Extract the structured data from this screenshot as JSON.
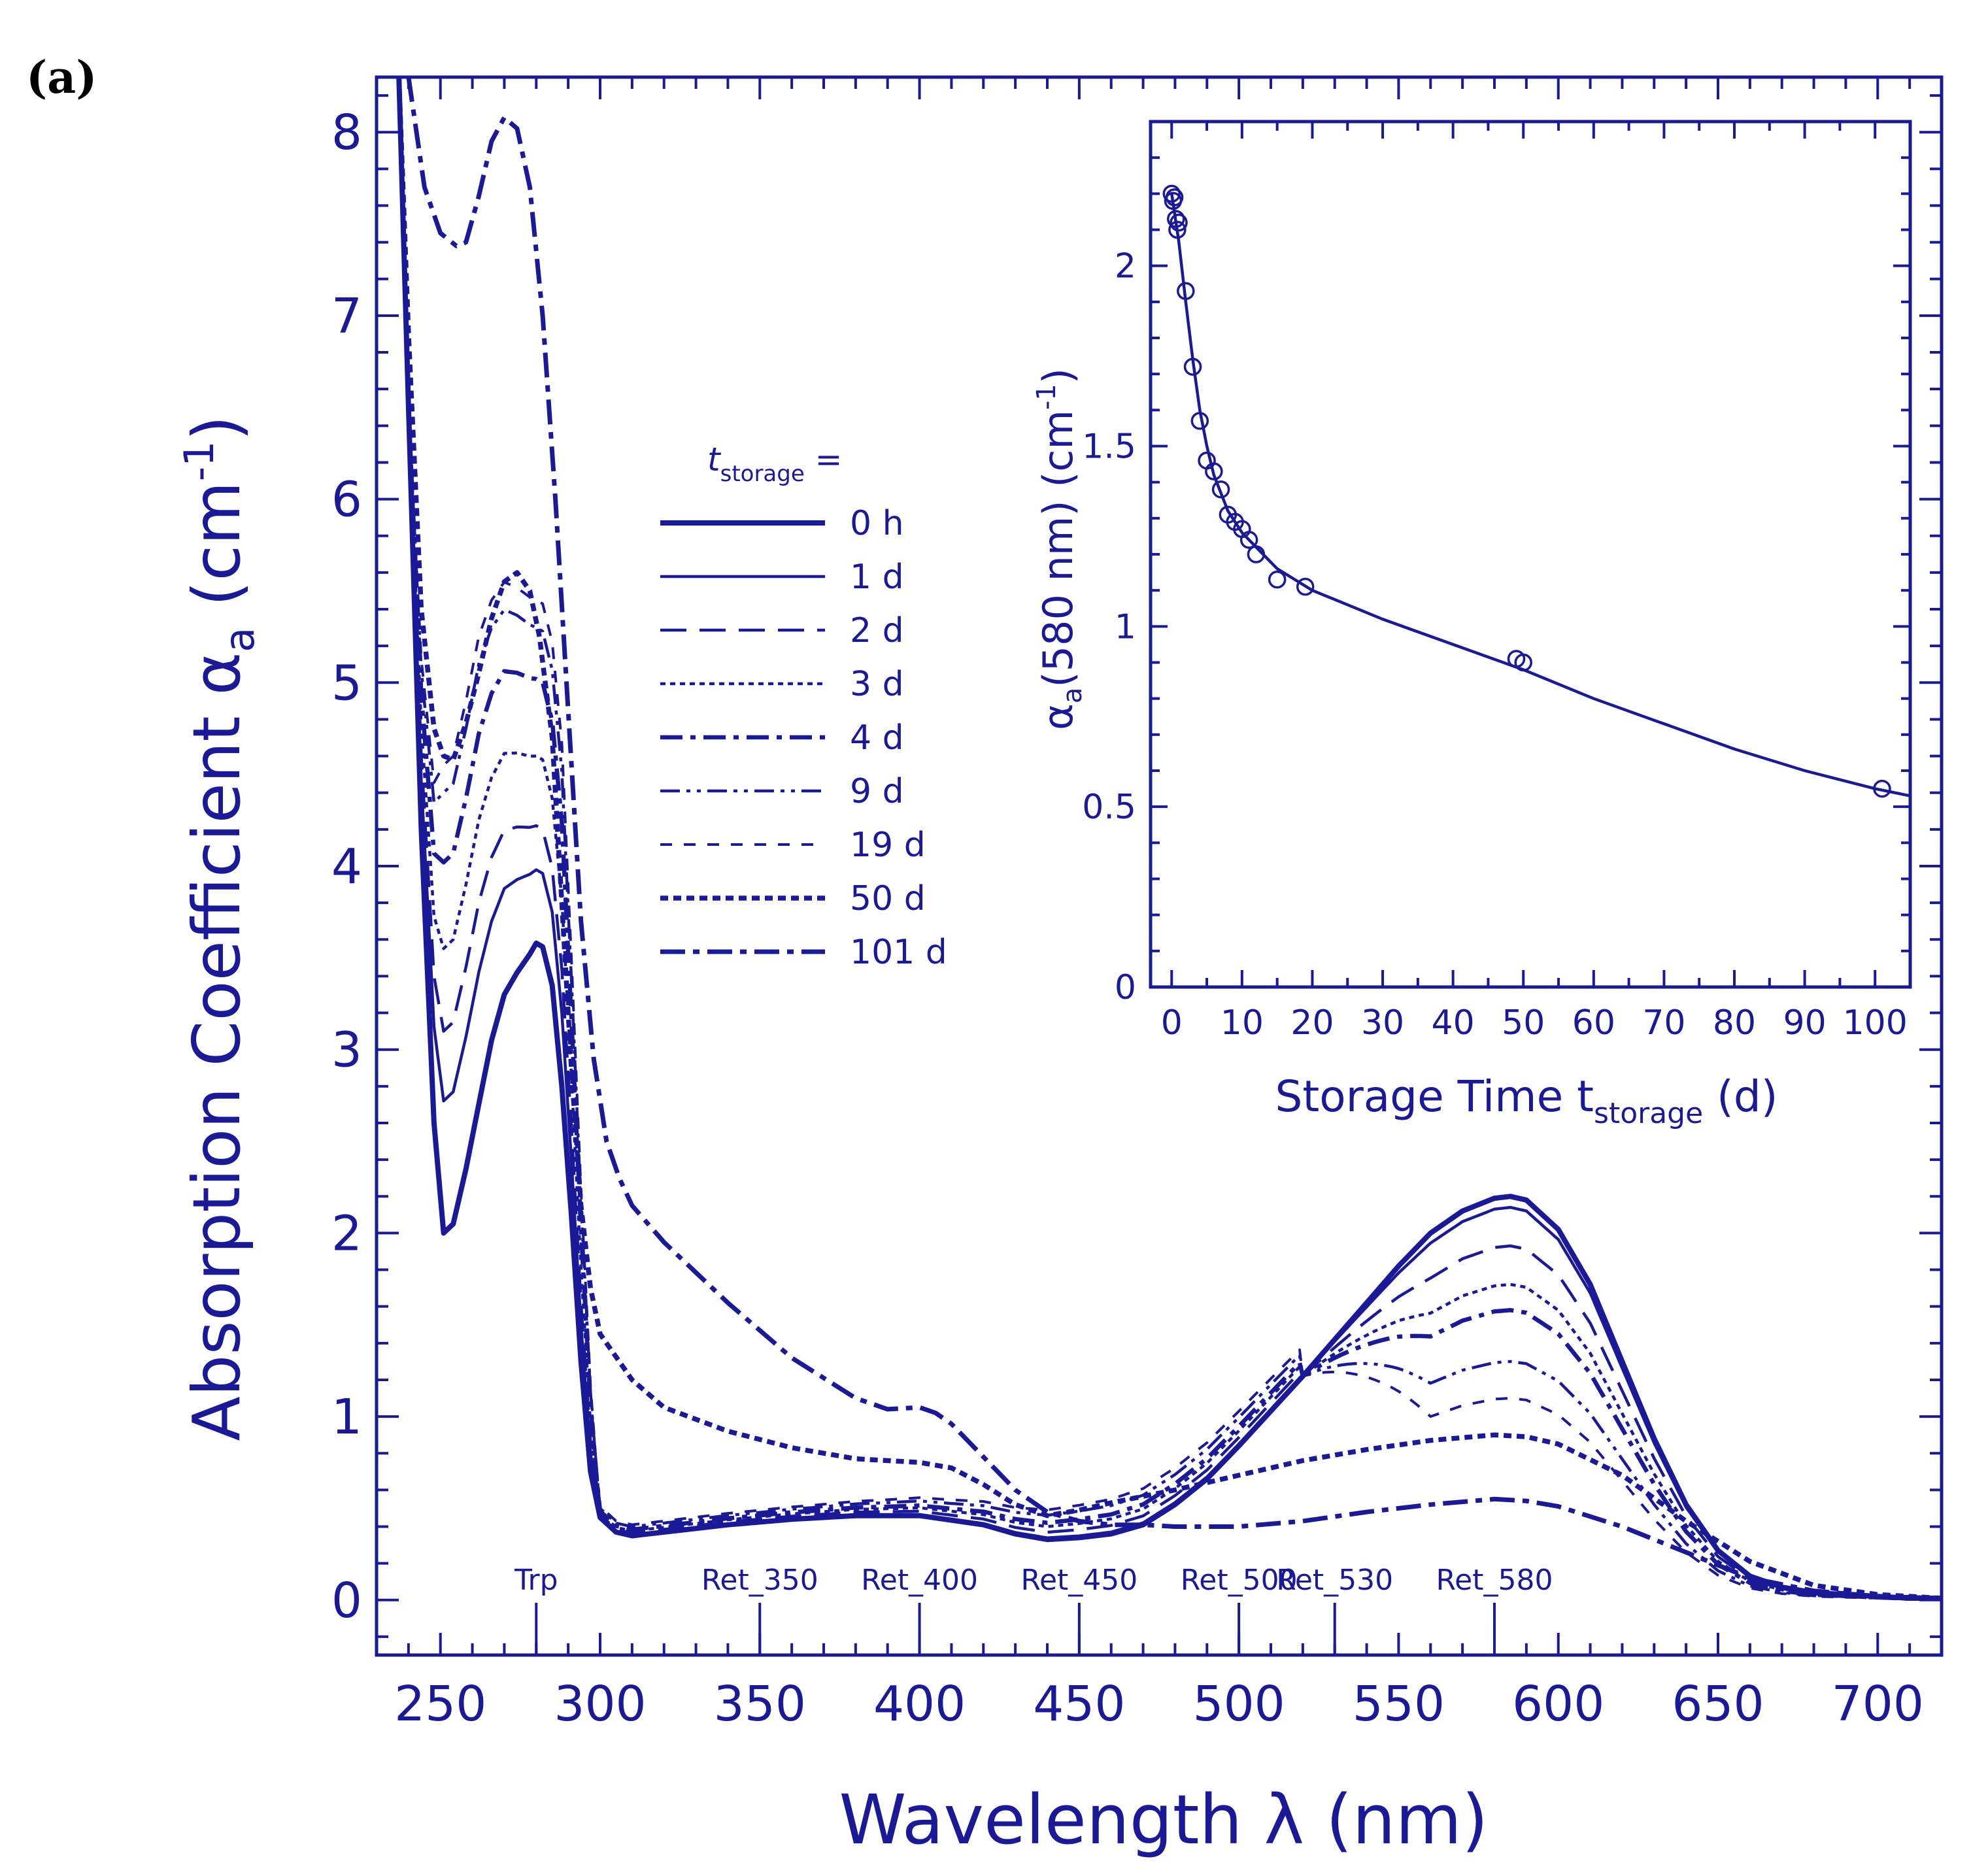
{
  "panel_label": "(a)",
  "colors": {
    "ink": "#1a1a99"
  },
  "chart_data": [
    {
      "type": "line",
      "title": "",
      "xlabel": "Wavelength  λ  (nm)",
      "ylabel_main": "Absorption Coefficient  α",
      "ylabel_sub": "a",
      "ylabel_unit_open": "(cm",
      "ylabel_unit_sup": "-1",
      "ylabel_unit_close": ")",
      "xlim": [
        230,
        720
      ],
      "ylim": [
        -0.3,
        8.3
      ],
      "xticks": [
        250,
        300,
        350,
        400,
        450,
        500,
        550,
        600,
        650,
        700
      ],
      "yticks": [
        0,
        1,
        2,
        3,
        4,
        5,
        6,
        7,
        8
      ],
      "legend_title_main": "t",
      "legend_title_sub": "storage",
      "legend_title_eq": " =",
      "legend_position": "center-left",
      "annotations": [
        {
          "label": "Trp",
          "x": 280
        },
        {
          "label": "Ret_350",
          "x": 350
        },
        {
          "label": "Ret_400",
          "x": 400
        },
        {
          "label": "Ret_450",
          "x": 450
        },
        {
          "label": "Ret_500",
          "x": 500
        },
        {
          "label": "Ret_530",
          "x": 530
        },
        {
          "label": "Ret_580",
          "x": 580
        }
      ],
      "series": [
        {
          "name": "0 h",
          "style": "solid-thick",
          "x": [
            237,
            240,
            244,
            248,
            251,
            254,
            258,
            262,
            266,
            270,
            274,
            278,
            280,
            282,
            285,
            288,
            291,
            294,
            297,
            300,
            305,
            310,
            315,
            320,
            330,
            340,
            360,
            380,
            400,
            420,
            430,
            440,
            450,
            460,
            470,
            480,
            490,
            500,
            510,
            520,
            530,
            540,
            550,
            560,
            570,
            580,
            585,
            590,
            600,
            610,
            620,
            630,
            640,
            650,
            660,
            670,
            680,
            690,
            700,
            710,
            720
          ],
          "y": [
            8.3,
            6.5,
            4.2,
            2.6,
            2.0,
            2.05,
            2.35,
            2.7,
            3.05,
            3.3,
            3.42,
            3.52,
            3.58,
            3.56,
            3.35,
            2.8,
            2.1,
            1.3,
            0.7,
            0.45,
            0.37,
            0.35,
            0.36,
            0.37,
            0.39,
            0.41,
            0.44,
            0.46,
            0.46,
            0.41,
            0.36,
            0.33,
            0.34,
            0.36,
            0.41,
            0.52,
            0.66,
            0.84,
            1.03,
            1.22,
            1.42,
            1.62,
            1.82,
            2.0,
            2.12,
            2.19,
            2.2,
            2.18,
            2.02,
            1.72,
            1.3,
            0.88,
            0.52,
            0.27,
            0.13,
            0.07,
            0.04,
            0.03,
            0.02,
            0.01,
            0.01
          ]
        },
        {
          "name": "1 d",
          "style": "solid",
          "base": "0h",
          "peak280": 3.98,
          "min250": 2.72,
          "peak580": 2.14
        },
        {
          "name": "2 d",
          "style": "dash-long",
          "base": "0h",
          "peak280": 4.22,
          "min250": 3.1,
          "peak580": 1.93
        },
        {
          "name": "3 d",
          "style": "dot-fine",
          "base": "0h",
          "peak280": 4.6,
          "min250": 3.55,
          "peak580": 1.72
        },
        {
          "name": "4 d",
          "style": "dash-dot",
          "base": "0h",
          "peak280": 5.02,
          "min250": 4.02,
          "peak580": 1.58
        },
        {
          "name": "9 d",
          "style": "dash-dot-dot",
          "base": "0h",
          "peak280": 5.3,
          "min250": 4.4,
          "peak580": 1.3
        },
        {
          "name": "19 d",
          "style": "dash-short",
          "base": "0h",
          "peak280": 5.45,
          "min250": 4.55,
          "peak580": 1.1
        },
        {
          "name": "50 d",
          "style": "dot-thick",
          "x": [
            237,
            240,
            244,
            248,
            251,
            254,
            258,
            262,
            266,
            270,
            274,
            278,
            281,
            285,
            288,
            291,
            294,
            297,
            300,
            310,
            320,
            340,
            360,
            380,
            400,
            410,
            420,
            430,
            440,
            450,
            460,
            480,
            500,
            520,
            540,
            560,
            580,
            590,
            600,
            620,
            640,
            660,
            680,
            700,
            720
          ],
          "y": [
            8.3,
            6.9,
            5.4,
            4.75,
            4.6,
            4.58,
            4.78,
            5.05,
            5.35,
            5.55,
            5.6,
            5.5,
            5.25,
            4.7,
            3.8,
            2.9,
            2.15,
            1.7,
            1.45,
            1.2,
            1.05,
            0.92,
            0.83,
            0.77,
            0.75,
            0.72,
            0.63,
            0.52,
            0.46,
            0.49,
            0.53,
            0.6,
            0.68,
            0.76,
            0.82,
            0.87,
            0.9,
            0.89,
            0.85,
            0.68,
            0.43,
            0.21,
            0.08,
            0.03,
            0.01
          ]
        },
        {
          "name": "101 d",
          "style": "dash-dot-thick",
          "x": [
            240,
            245,
            250,
            255,
            258,
            262,
            266,
            270,
            274,
            278,
            282,
            286,
            290,
            294,
            298,
            302,
            306,
            310,
            320,
            340,
            360,
            380,
            390,
            400,
            405,
            410,
            420,
            430,
            440,
            450,
            460,
            470,
            480,
            500,
            520,
            540,
            560,
            580,
            590,
            600,
            620,
            640,
            660,
            680,
            700,
            720
          ],
          "y": [
            8.3,
            7.7,
            7.45,
            7.38,
            7.4,
            7.65,
            7.95,
            8.08,
            8.02,
            7.7,
            7.0,
            6.0,
            4.85,
            3.7,
            2.95,
            2.5,
            2.3,
            2.15,
            1.95,
            1.62,
            1.32,
            1.1,
            1.04,
            1.05,
            1.02,
            0.96,
            0.78,
            0.6,
            0.48,
            0.43,
            0.41,
            0.41,
            0.4,
            0.4,
            0.43,
            0.48,
            0.52,
            0.55,
            0.54,
            0.51,
            0.4,
            0.26,
            0.12,
            0.05,
            0.02,
            0.01
          ]
        }
      ]
    },
    {
      "type": "scatter",
      "inset": true,
      "xlabel_main": "Storage Time  t",
      "xlabel_sub": "storage",
      "xlabel_unit": "  (d)",
      "ylabel_main": "α",
      "ylabel_sub": "a",
      "ylabel_rest": "(580 nm)  (cm",
      "ylabel_sup": "-1",
      "ylabel_close": ")",
      "xlim": [
        -3,
        105
      ],
      "ylim": [
        0,
        2.4
      ],
      "xticks": [
        0,
        10,
        20,
        30,
        40,
        50,
        60,
        70,
        80,
        90,
        100
      ],
      "yticks": [
        0,
        0.5,
        1,
        1.5,
        2
      ],
      "ytick_labels": [
        "0",
        "0.5",
        "1",
        "1.5",
        "2"
      ],
      "points": [
        [
          0,
          2.2
        ],
        [
          0.2,
          2.18
        ],
        [
          0.4,
          2.19
        ],
        [
          0.6,
          2.13
        ],
        [
          0.8,
          2.1
        ],
        [
          1,
          2.12
        ],
        [
          2,
          1.93
        ],
        [
          3,
          1.72
        ],
        [
          4,
          1.57
        ],
        [
          5,
          1.46
        ],
        [
          6,
          1.43
        ],
        [
          7,
          1.38
        ],
        [
          8,
          1.31
        ],
        [
          9,
          1.29
        ],
        [
          10,
          1.27
        ],
        [
          11,
          1.24
        ],
        [
          12,
          1.2
        ],
        [
          15,
          1.13
        ],
        [
          19,
          1.11
        ],
        [
          49,
          0.91
        ],
        [
          50,
          0.9
        ],
        [
          101,
          0.55
        ]
      ],
      "fit": {
        "x": [
          0,
          1,
          2,
          3,
          4,
          5,
          6,
          8,
          10,
          12,
          15,
          20,
          30,
          40,
          50,
          60,
          70,
          80,
          90,
          100,
          105
        ],
        "y": [
          2.2,
          2.07,
          1.9,
          1.74,
          1.6,
          1.5,
          1.42,
          1.32,
          1.26,
          1.22,
          1.16,
          1.1,
          1.02,
          0.95,
          0.88,
          0.8,
          0.73,
          0.66,
          0.6,
          0.55,
          0.53
        ]
      }
    }
  ]
}
